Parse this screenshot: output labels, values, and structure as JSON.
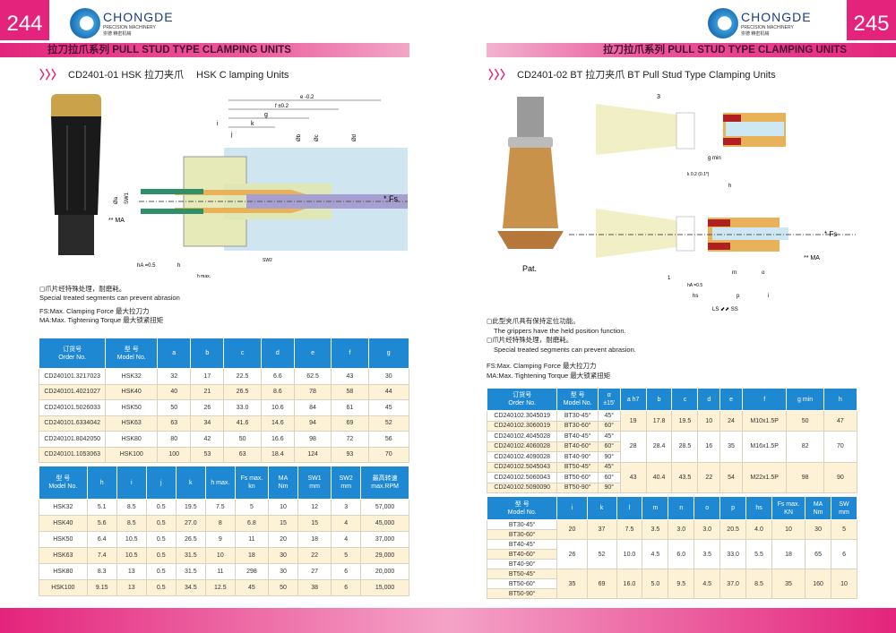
{
  "left": {
    "page_number": "244",
    "brand": {
      "name": "CHONGDE",
      "tagline": "PRECISION MACHINERY",
      "cn": "崇德 精密机械"
    },
    "band_title": "拉刀拉爪系列 PULL STUD TYPE CLAMPING UNITS",
    "subtitle": "CD2401-01 HSK 拉刀夹爪　 HSK C lamping Units",
    "diagram_labels": {
      "e": "e -0.2",
      "f": "f ±0.2",
      "g": "g",
      "k": "k",
      "i": "i",
      "j": "j",
      "db": "Øb",
      "dc": "Øc",
      "dd": "Ød",
      "da": "Øa",
      "sw1": "SW1",
      "sw2": "SW2",
      "fs": "* Fs",
      "ma": "** MA",
      "ha": "hA =0.5",
      "h": "h",
      "hmax": "h max."
    },
    "notes": [
      "◻爪片经特殊处理，耐磨耗。",
      "Special treated segments can prevent abrasion",
      "FS:Max. Clamping Force 最大拉刀力",
      "MA:Max.  Tightening Torque 最大锁紧扭矩"
    ],
    "table1": {
      "headers": [
        "订货号\nOrder No.",
        "型 号\nModel No.",
        "a",
        "b",
        "c",
        "d",
        "e",
        "f",
        "g"
      ],
      "rows": [
        [
          "CD240101.3217023",
          "HSK32",
          "32",
          "17",
          "22.5",
          "6.6",
          "62.5",
          "43",
          "30"
        ],
        [
          "CD240101.4021027",
          "HSK40",
          "40",
          "21",
          "26.5",
          "8.6",
          "78",
          "58",
          "44"
        ],
        [
          "CD240101.5026033",
          "HSK50",
          "50",
          "26",
          "33.0",
          "10.6",
          "84",
          "61",
          "45"
        ],
        [
          "CD240101.6334042",
          "HSK63",
          "63",
          "34",
          "41.6",
          "14.6",
          "94",
          "69",
          "52"
        ],
        [
          "CD240101.8042050",
          "HSK80",
          "80",
          "42",
          "50",
          "16.6",
          "98",
          "72",
          "56"
        ],
        [
          "CD240101.1053063",
          "HSK100",
          "100",
          "53",
          "63",
          "18.4",
          "124",
          "93",
          "70"
        ]
      ]
    },
    "table2": {
      "headers": [
        "型 号\nModel No.",
        "h",
        "i",
        "j",
        "k",
        "h max.",
        "Fs max.\nkn",
        "MA\nNm",
        "SW1\nmm",
        "SW2\nmm",
        "最高转速\nmax.RPM"
      ],
      "rows": [
        [
          "HSK32",
          "5.1",
          "8.5",
          "0.5",
          "19.5",
          "7.5",
          "5",
          "10",
          "12",
          "3",
          "57,000"
        ],
        [
          "HSK40",
          "5.6",
          "8.5",
          "0.5",
          "27.0",
          "8",
          "6.8",
          "15",
          "15",
          "4",
          "45,000"
        ],
        [
          "HSK50",
          "6.4",
          "10.5",
          "0.5",
          "26.5",
          "9",
          "11",
          "20",
          "18",
          "4",
          "37,000"
        ],
        [
          "HSK63",
          "7.4",
          "10.5",
          "0.5",
          "31.5",
          "10",
          "18",
          "30",
          "22",
          "5",
          "29,000"
        ],
        [
          "HSK80",
          "8.3",
          "13",
          "0.5",
          "31.5",
          "11",
          "298",
          "30",
          "27",
          "6",
          "20,000"
        ],
        [
          "HSK100",
          "9.15",
          "13",
          "0.5",
          "34.5",
          "12.5",
          "45",
          "50",
          "38",
          "6",
          "15,000"
        ]
      ]
    }
  },
  "right": {
    "page_number": "245",
    "brand": {
      "name": "CHONGDE",
      "tagline": "PRECISION MACHINERY",
      "cn": "崇德 精密机械"
    },
    "band_title": "拉刀拉爪系列 PULL STUD TYPE CLAMPING UNITS",
    "subtitle": "CD2401-02  BT  拉刀夹爪   BT Pull Stud Type Clamping Units",
    "image_caption": "Pat.",
    "diagram_labels": {
      "three": "3",
      "gmin": "g min",
      "h": "h",
      "k": "k 0.2 (0.1*)",
      "fs": "* Fs",
      "ma": "** MA",
      "ls": "LS ⬋⬈ SS",
      "p": "p",
      "i": "i",
      "hs": "hs",
      "m": "m",
      "o": "o",
      "one": "1",
      "ha": "hA =0.5"
    },
    "notes": [
      "◻此型夹爪具有保持定位功能。",
      "The grippers have the held position function.",
      "◻爪片经特殊处理，耐磨耗。",
      "Special treated segments can prevent abrasion.",
      "FS:Max. Clamping Force  最大拉刀力",
      "MA:Max.  Tightening Torque 最大锁紧扭矩"
    ],
    "table1": {
      "headers": [
        "订货号\nOrder No.",
        "型 号\nModel No.",
        "α\n±15'",
        "a h7",
        "b",
        "c",
        "d",
        "e",
        "f",
        "g min",
        "h"
      ],
      "rows": [
        [
          "CD240102.3045019",
          "BT30-45°",
          "45°"
        ],
        [
          "CD240102.3060019",
          "BT30-60°",
          "60°"
        ],
        [
          "CD240102.4045028",
          "BT40-45°",
          "45°"
        ],
        [
          "CD240102.4060028",
          "BT40-60°",
          "60°"
        ],
        [
          "CD240102.4090028",
          "BT40-90°",
          "90°"
        ],
        [
          "CD240102.5045043",
          "BT50-45°",
          "45°"
        ],
        [
          "CD240102.5060043",
          "BT50-60°",
          "60°"
        ],
        [
          "CD240102.5090090",
          "BT50-90°",
          "90°"
        ]
      ],
      "groups": [
        {
          "span": 2,
          "values": [
            "19",
            "17.8",
            "19.5",
            "10",
            "24",
            "M10x1.5P",
            "50",
            "47"
          ]
        },
        {
          "span": 3,
          "values": [
            "28",
            "28.4",
            "28.5",
            "16",
            "35",
            "M16x1.5P",
            "82",
            "70"
          ]
        },
        {
          "span": 3,
          "values": [
            "43",
            "40.4",
            "43.5",
            "22",
            "54",
            "M22x1.5P",
            "98",
            "90"
          ]
        }
      ]
    },
    "table2": {
      "headers": [
        "型 号\nModel No.",
        "i",
        "k",
        "l",
        "m",
        "n",
        "o",
        "p",
        "hs",
        "Fs max.\nKN",
        "MA\nNm",
        "SW\nmm"
      ],
      "rows": [
        [
          "BT30-45°"
        ],
        [
          "BT30-60°"
        ],
        [
          "BT40-45°"
        ],
        [
          "BT40-60°"
        ],
        [
          "BT40-90°"
        ],
        [
          "BT50-45°"
        ],
        [
          "BT50-60°"
        ],
        [
          "BT50-90°"
        ]
      ],
      "groups": [
        {
          "span": 2,
          "values": [
            "20",
            "37",
            "7.5",
            "3.5",
            "3.0",
            "3.0",
            "20.5",
            "4.0",
            "10",
            "30",
            "5"
          ]
        },
        {
          "span": 3,
          "values": [
            "26",
            "52",
            "10.0",
            "4.5",
            "6.0",
            "3.5",
            "33.0",
            "5.5",
            "18",
            "65",
            "6"
          ]
        },
        {
          "span": 3,
          "values": [
            "35",
            "69",
            "16.0",
            "5.0",
            "9.5",
            "4.5",
            "37.0",
            "8.5",
            "35",
            "160",
            "10"
          ]
        }
      ]
    }
  },
  "colors": {
    "brand_pink": "#e4247c",
    "table_header": "#1e88d2",
    "row_alt": "#fdf1d6"
  }
}
